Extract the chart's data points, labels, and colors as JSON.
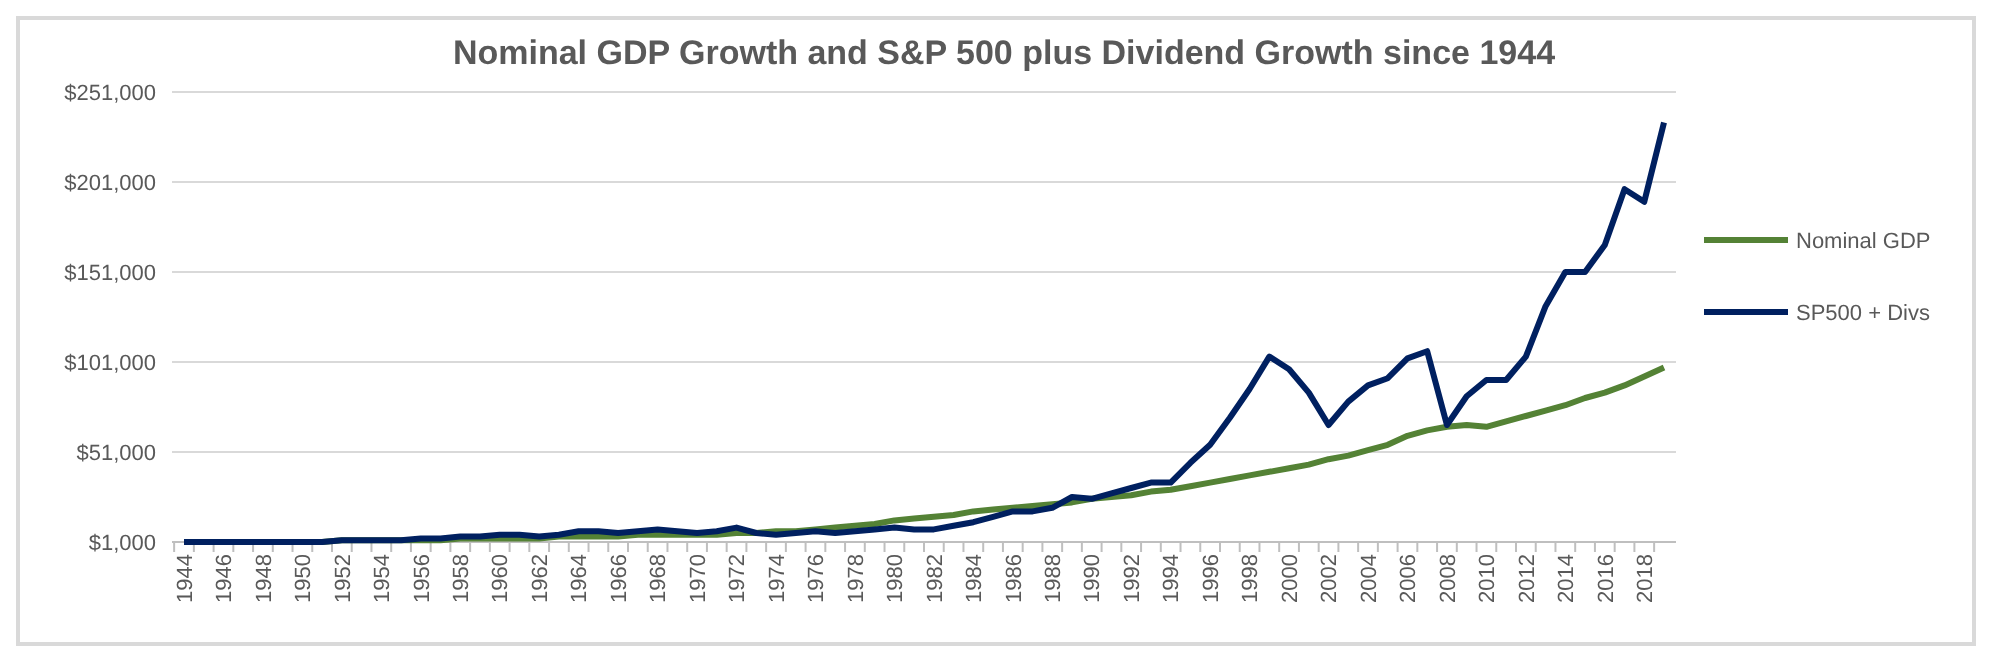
{
  "chart_data": {
    "type": "line",
    "title": "Nominal GDP Growth and S&P 500 plus Dividend Growth since 1944",
    "categories": [
      "1944",
      null,
      "1946",
      null,
      "1948",
      null,
      "1950",
      null,
      "1952",
      null,
      "1954",
      null,
      "1956",
      null,
      "1958",
      null,
      "1960",
      null,
      "1962",
      null,
      "1964",
      null,
      "1966",
      null,
      "1968",
      null,
      "1970",
      null,
      "1972",
      null,
      "1974",
      null,
      "1976",
      null,
      "1978",
      null,
      "1980",
      null,
      "1982",
      null,
      "1984",
      null,
      "1986",
      null,
      "1988",
      null,
      "1990",
      null,
      "1992",
      null,
      "1994",
      null,
      "1996",
      null,
      "1998",
      null,
      "2000",
      null,
      "2002",
      null,
      "2004",
      null,
      "2006",
      null,
      "2008",
      null,
      "2010",
      null,
      "2012",
      null,
      "2014",
      null,
      "2016",
      null,
      "2018",
      null
    ],
    "series": [
      {
        "name": "Nominal GDP",
        "color": "#548235",
        "values": [
          null,
          null,
          null,
          null,
          null,
          null,
          1000,
          1000,
          2000,
          2000,
          2000,
          2000,
          2000,
          2000,
          3000,
          3000,
          3000,
          3000,
          3000,
          4000,
          4000,
          4000,
          4000,
          5000,
          5000,
          5000,
          5000,
          5000,
          6000,
          6000,
          7000,
          7000,
          8000,
          9000,
          10000,
          11000,
          13000,
          14000,
          15000,
          16000,
          18000,
          19000,
          20000,
          21000,
          22000,
          23000,
          25000,
          26000,
          27000,
          29000,
          30000,
          32000,
          34000,
          36000,
          38000,
          40000,
          42000,
          44000,
          47000,
          49000,
          52000,
          55000,
          60000,
          63000,
          65000,
          66000,
          65000,
          68000,
          71000,
          74000,
          77000,
          81000,
          84000,
          88000,
          93000,
          98000
        ]
      },
      {
        "name": "SP500 + Divs",
        "color": "#002060",
        "values": [
          1000,
          1000,
          1000,
          1000,
          1000,
          1000,
          1000,
          1000,
          2000,
          2000,
          2000,
          2000,
          3000,
          3000,
          4000,
          4000,
          5000,
          5000,
          4000,
          5000,
          7000,
          7000,
          6000,
          7000,
          8000,
          7000,
          6000,
          7000,
          9000,
          6000,
          5000,
          6000,
          7000,
          6000,
          7000,
          8000,
          9000,
          8000,
          8000,
          10000,
          12000,
          15000,
          18000,
          18000,
          20000,
          26000,
          25000,
          28000,
          31000,
          34000,
          34000,
          45000,
          55000,
          70000,
          86000,
          104000,
          97000,
          84000,
          66000,
          79000,
          88000,
          92000,
          103000,
          107000,
          66000,
          82000,
          91000,
          91000,
          104000,
          132000,
          151000,
          151000,
          166000,
          197000,
          190000,
          234000
        ]
      }
    ],
    "ylim": [
      1000,
      251000
    ],
    "yticks": [
      {
        "value": 1000,
        "label": "$1,000"
      },
      {
        "value": 51000,
        "label": "$51,000"
      },
      {
        "value": 101000,
        "label": "$101,000"
      },
      {
        "value": 151000,
        "label": "$151,000"
      },
      {
        "value": 201000,
        "label": "$201,000"
      },
      {
        "value": 251000,
        "label": "$251,000"
      }
    ],
    "grid": "y",
    "legend": "right",
    "marker": "none",
    "line_style": "solid"
  }
}
